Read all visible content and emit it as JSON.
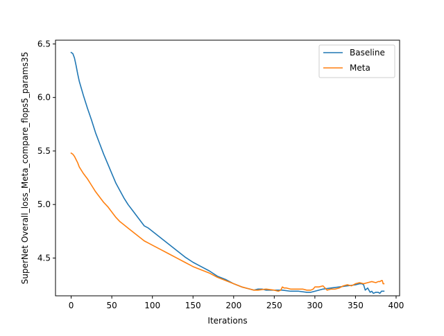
{
  "chart_data": {
    "type": "line",
    "title": "",
    "xlabel": "Iterations",
    "ylabel": "SuperNet Overall_loss_Meta_compare_flops5_params35",
    "xlim": [
      -19.3,
      404.3
    ],
    "ylim": [
      4.147,
      6.535
    ],
    "x_ticks": [
      0,
      50,
      100,
      150,
      200,
      250,
      300,
      350,
      400
    ],
    "y_ticks": [
      4.5,
      5.0,
      5.5,
      6.0,
      6.5
    ],
    "x_tick_labels": [
      "0",
      "50",
      "100",
      "150",
      "200",
      "250",
      "300",
      "350",
      "400"
    ],
    "y_tick_labels": [
      "4.5",
      "5.0",
      "5.5",
      "6.0",
      "6.5"
    ],
    "grid": false,
    "legend_position": "top-right",
    "series": [
      {
        "name": "Baseline",
        "color": "#1f77b4",
        "x": [
          0,
          2,
          4,
          6,
          8,
          10,
          15,
          20,
          25,
          30,
          35,
          40,
          45,
          50,
          55,
          60,
          65,
          70,
          75,
          80,
          85,
          90,
          95,
          100,
          110,
          120,
          130,
          140,
          150,
          160,
          170,
          180,
          190,
          200,
          210,
          215,
          220,
          225,
          230,
          235,
          240,
          250,
          260,
          270,
          280,
          290,
          295,
          300,
          310,
          320,
          330,
          340,
          350,
          355,
          358,
          360,
          362,
          365,
          368,
          370,
          372,
          375,
          378,
          380,
          382,
          385
        ],
        "y": [
          6.42,
          6.41,
          6.37,
          6.3,
          6.22,
          6.15,
          6.02,
          5.9,
          5.79,
          5.67,
          5.57,
          5.47,
          5.38,
          5.29,
          5.2,
          5.13,
          5.06,
          5.0,
          4.95,
          4.9,
          4.85,
          4.8,
          4.78,
          4.75,
          4.69,
          4.63,
          4.57,
          4.51,
          4.46,
          4.42,
          4.38,
          4.33,
          4.3,
          4.26,
          4.23,
          4.22,
          4.21,
          4.2,
          4.21,
          4.21,
          4.2,
          4.2,
          4.2,
          4.19,
          4.19,
          4.18,
          4.18,
          4.19,
          4.21,
          4.22,
          4.23,
          4.24,
          4.25,
          4.26,
          4.26,
          4.25,
          4.2,
          4.22,
          4.18,
          4.19,
          4.17,
          4.18,
          4.18,
          4.17,
          4.19,
          4.19
        ]
      },
      {
        "name": "Meta",
        "color": "#ff7f0e",
        "x": [
          0,
          2,
          4,
          6,
          8,
          10,
          15,
          20,
          25,
          30,
          35,
          40,
          45,
          50,
          55,
          60,
          65,
          70,
          75,
          80,
          85,
          90,
          95,
          100,
          110,
          120,
          130,
          140,
          150,
          160,
          170,
          180,
          190,
          200,
          210,
          220,
          225,
          230,
          240,
          250,
          255,
          258,
          260,
          262,
          265,
          270,
          275,
          280,
          285,
          290,
          295,
          298,
          300,
          305,
          310,
          315,
          320,
          325,
          330,
          335,
          340,
          345,
          350,
          355,
          360,
          365,
          370,
          375,
          378,
          380,
          382,
          383,
          384,
          385
        ],
        "y": [
          5.48,
          5.47,
          5.45,
          5.42,
          5.39,
          5.35,
          5.29,
          5.24,
          5.18,
          5.12,
          5.07,
          5.02,
          4.98,
          4.93,
          4.88,
          4.84,
          4.81,
          4.78,
          4.75,
          4.72,
          4.69,
          4.66,
          4.64,
          4.62,
          4.58,
          4.54,
          4.5,
          4.46,
          4.42,
          4.39,
          4.36,
          4.32,
          4.29,
          4.26,
          4.23,
          4.21,
          4.2,
          4.2,
          4.21,
          4.2,
          4.19,
          4.2,
          4.23,
          4.22,
          4.22,
          4.21,
          4.21,
          4.21,
          4.21,
          4.2,
          4.2,
          4.21,
          4.23,
          4.23,
          4.24,
          4.2,
          4.21,
          4.21,
          4.22,
          4.24,
          4.25,
          4.24,
          4.26,
          4.27,
          4.26,
          4.27,
          4.28,
          4.27,
          4.28,
          4.28,
          4.29,
          4.29,
          4.26,
          4.26
        ]
      }
    ]
  }
}
